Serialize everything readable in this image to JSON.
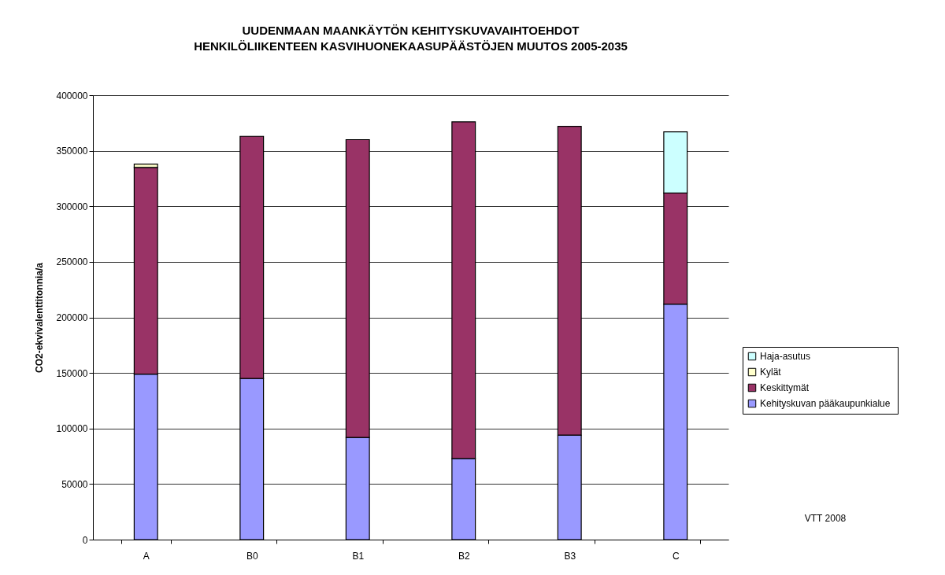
{
  "chart_data": {
    "type": "bar",
    "stacked": true,
    "title": "UUDENMAAN MAANKÄYTÖN KEHITYSKUVAVAIHTOEHDOT\nHENKILÖLIIKENTEEN KASVIHUONEKAASUPÄÄSTÖJEN MUUTOS 2005-2035",
    "ylabel": "CO2-ekvivalenttitonnia/a",
    "categories": [
      "A",
      "B0",
      "B1",
      "B2",
      "B3",
      "C"
    ],
    "series": [
      {
        "name": "Kehityskuvan  pääkaupunkialue",
        "color": "#9999ff",
        "values": [
          149000,
          145000,
          92000,
          73000,
          94000,
          212000
        ]
      },
      {
        "name": "Keskittymät",
        "color": "#993366",
        "values": [
          186000,
          218000,
          268000,
          303000,
          278000,
          100000
        ]
      },
      {
        "name": "Kylät",
        "color": "#ffffcc",
        "values": [
          3000,
          null,
          null,
          null,
          null,
          null
        ]
      },
      {
        "name": "Haja-asutus",
        "color": "#ccffff",
        "values": [
          null,
          null,
          null,
          null,
          null,
          55000
        ]
      }
    ],
    "ylim": [
      0,
      400000
    ],
    "yticks": [
      0,
      50000,
      100000,
      150000,
      200000,
      250000,
      300000,
      350000,
      400000
    ],
    "grid": "y",
    "legend": "right",
    "annotations": [
      "VTT 2008"
    ]
  }
}
